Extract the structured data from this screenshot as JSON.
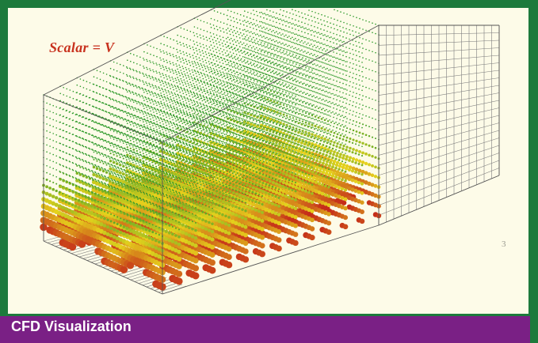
{
  "figure": {
    "scalar_label": "Scalar = V",
    "caption": "CFD Visualization",
    "page_mark": "3"
  },
  "colors": {
    "border": "#1d7a3c",
    "panel_background": "#fdfbe8",
    "caption_background": "#7a2085",
    "caption_text": "#ffffff",
    "label_text": "#c8321e",
    "low_value": "#2e9a2a",
    "mid_value": "#e6d21c",
    "high_value": "#c4281a"
  }
}
